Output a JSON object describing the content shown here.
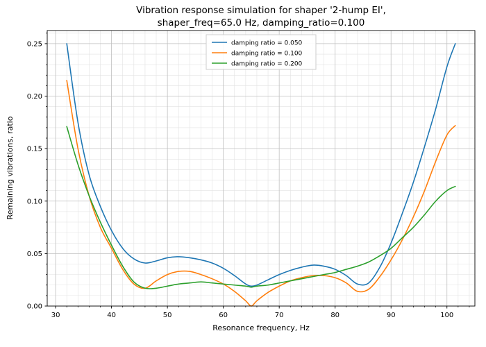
{
  "chart_data": {
    "type": "line",
    "title": "Vibration response simulation for shaper '2-hump EI', shaper_freq=65.0 Hz, damping_ratio=0.100",
    "title_line1": "Vibration response simulation for shaper '2-hump EI',",
    "title_line2": "shaper_freq=65.0 Hz, damping_ratio=0.100",
    "xlabel": "Resonance frequency, Hz",
    "ylabel": "Remaining vibrations, ratio",
    "xlim": [
      28.5,
      105
    ],
    "ylim": [
      0,
      0.2625
    ],
    "xticks": [
      30,
      40,
      50,
      60,
      70,
      80,
      90,
      100
    ],
    "yticks": [
      0.0,
      0.05,
      0.1,
      0.15,
      0.2,
      0.25
    ],
    "grid": "both",
    "legend_position": "upper center",
    "x": [
      32,
      34,
      36,
      38,
      40,
      42,
      44,
      46,
      48,
      50,
      52,
      54,
      56,
      58,
      60,
      62,
      64,
      65,
      66,
      68,
      70,
      72,
      74,
      76,
      78,
      80,
      82,
      84,
      86,
      88,
      90,
      92,
      94,
      96,
      98,
      100,
      101.5
    ],
    "series": [
      {
        "name": "damping ratio = 0.050",
        "color": "#1f77b4",
        "values": [
          0.25,
          0.175,
          0.125,
          0.095,
          0.072,
          0.055,
          0.045,
          0.041,
          0.043,
          0.046,
          0.047,
          0.046,
          0.044,
          0.041,
          0.036,
          0.029,
          0.021,
          0.019,
          0.02,
          0.025,
          0.03,
          0.034,
          0.037,
          0.039,
          0.038,
          0.035,
          0.029,
          0.021,
          0.022,
          0.037,
          0.06,
          0.088,
          0.118,
          0.152,
          0.188,
          0.228,
          0.25
        ]
      },
      {
        "name": "damping ratio = 0.100",
        "color": "#ff7f0e",
        "values": [
          0.215,
          0.15,
          0.105,
          0.075,
          0.055,
          0.035,
          0.021,
          0.017,
          0.024,
          0.03,
          0.033,
          0.033,
          0.03,
          0.026,
          0.021,
          0.014,
          0.005,
          0.0,
          0.005,
          0.013,
          0.019,
          0.024,
          0.027,
          0.029,
          0.029,
          0.027,
          0.022,
          0.014,
          0.016,
          0.028,
          0.044,
          0.063,
          0.085,
          0.11,
          0.138,
          0.163,
          0.172
        ]
      },
      {
        "name": "damping ratio = 0.200",
        "color": "#2ca02c",
        "values": [
          0.171,
          0.135,
          0.105,
          0.08,
          0.058,
          0.038,
          0.023,
          0.017,
          0.017,
          0.019,
          0.021,
          0.022,
          0.023,
          0.022,
          0.021,
          0.02,
          0.019,
          0.018,
          0.019,
          0.02,
          0.022,
          0.024,
          0.026,
          0.028,
          0.03,
          0.032,
          0.035,
          0.038,
          0.042,
          0.048,
          0.055,
          0.065,
          0.075,
          0.087,
          0.1,
          0.11,
          0.114
        ]
      }
    ]
  }
}
